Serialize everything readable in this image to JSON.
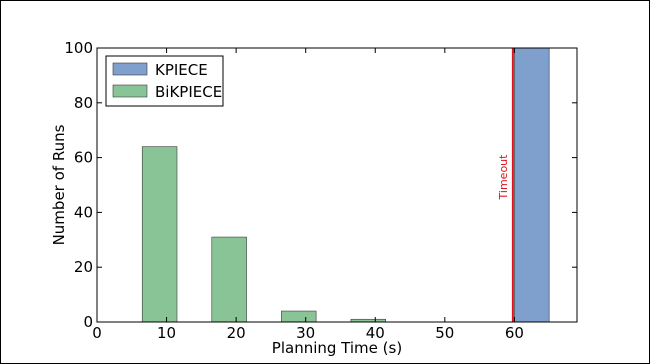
{
  "chart_data": {
    "type": "bar",
    "xlabel": "Planning Time (s)",
    "ylabel": "Number of Runs",
    "xlim": [
      0,
      69
    ],
    "ylim": [
      0,
      100
    ],
    "xticks": [
      "0",
      "10",
      "20",
      "30",
      "40",
      "50",
      "60"
    ],
    "yticks": [
      "0",
      "20",
      "40",
      "60",
      "80",
      "100"
    ],
    "bar_width": 5,
    "series": [
      {
        "name": "KPIECE",
        "color": "#7f9fcc",
        "bars": [
          {
            "x": 60,
            "value": 100
          }
        ]
      },
      {
        "name": "BiKPIECE",
        "color": "#88c496",
        "bars": [
          {
            "x": 6.5,
            "value": 64
          },
          {
            "x": 16.5,
            "value": 31
          },
          {
            "x": 26.5,
            "value": 4
          },
          {
            "x": 36.5,
            "value": 1
          }
        ]
      }
    ],
    "annotations": [
      {
        "type": "vline",
        "x": 60,
        "label": "Timeout",
        "color": "#e0141c"
      }
    ],
    "legend": "top-left",
    "grid": false
  }
}
